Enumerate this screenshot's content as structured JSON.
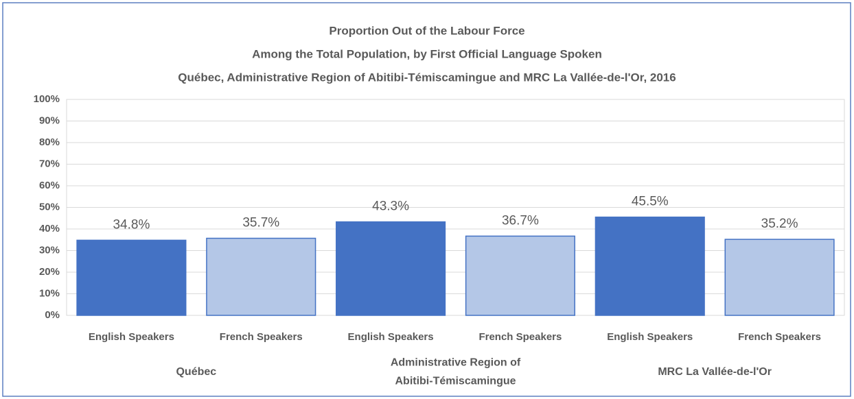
{
  "chart_data": {
    "type": "bar",
    "title": [
      "Proportion Out of the Labour Force",
      "Among the Total Population, by First Official Language Spoken",
      "Québec, Administrative Region of Abitibi-Témiscamingue and MRC La Vallée-de-l'Or, 2016"
    ],
    "categories": [
      "English Speakers",
      "French Speakers",
      "English Speakers",
      "French Speakers",
      "English Speakers",
      "French Speakers"
    ],
    "groups": [
      [
        "Québec"
      ],
      [
        "Administrative Region of",
        "Abitibi-Témiscamingue"
      ],
      [
        "MRC La Vallée-de-l'Or"
      ]
    ],
    "values": [
      34.8,
      35.7,
      43.3,
      36.7,
      45.5,
      35.2
    ],
    "value_labels": [
      "34.8%",
      "35.7%",
      "43.3%",
      "36.7%",
      "45.5%",
      "35.2%"
    ],
    "colors": [
      "#4472c4",
      "#b4c7e7",
      "#4472c4",
      "#b4c7e7",
      "#4472c4",
      "#b4c7e7"
    ],
    "ylim": [
      0,
      100
    ],
    "yticks": [
      {
        "value": 0,
        "label": "0%"
      },
      {
        "value": 10,
        "label": "10%"
      },
      {
        "value": 20,
        "label": "20%"
      },
      {
        "value": 30,
        "label": "30%"
      },
      {
        "value": 40,
        "label": "40%"
      },
      {
        "value": 50,
        "label": "50%"
      },
      {
        "value": 60,
        "label": "60%"
      },
      {
        "value": 70,
        "label": "70%"
      },
      {
        "value": 80,
        "label": "80%"
      },
      {
        "value": 90,
        "label": "90%"
      },
      {
        "value": 100,
        "label": "100%"
      }
    ],
    "grid": true
  }
}
